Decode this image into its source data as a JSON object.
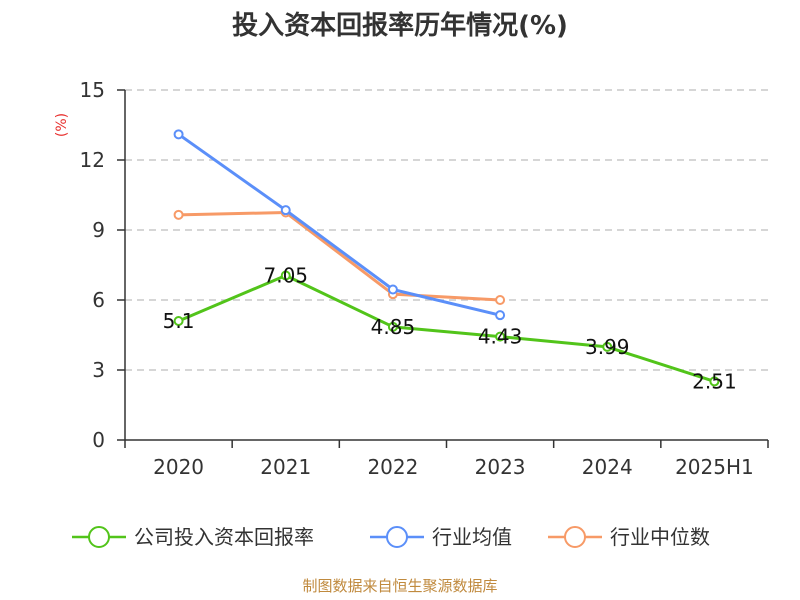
{
  "chart_data": {
    "type": "line",
    "title": "投入资本回报率历年情况(%)",
    "unit_label": "(%)",
    "categories": [
      "2020",
      "2021",
      "2022",
      "2023",
      "2024",
      "2025H1"
    ],
    "ylim": [
      0,
      15
    ],
    "yticks": [
      0,
      3,
      6,
      9,
      12,
      15
    ],
    "grid": true,
    "legend_position": "bottom",
    "series": [
      {
        "name": "公司投入资本回报率",
        "color": "#52c41a",
        "values": [
          5.1,
          7.05,
          4.85,
          4.43,
          3.99,
          2.51
        ],
        "labels": [
          "5.1",
          "7.05",
          "4.85",
          "4.43",
          "3.99",
          "2.51"
        ]
      },
      {
        "name": "行业均值",
        "color": "#5b8ff9",
        "values": [
          13.1,
          9.85,
          6.45,
          5.35,
          null,
          null
        ]
      },
      {
        "name": "行业中位数",
        "color": "#f79a67",
        "values": [
          9.65,
          9.75,
          6.25,
          6.0,
          null,
          null
        ]
      }
    ]
  },
  "source": "制图数据来自恒生聚源数据库"
}
